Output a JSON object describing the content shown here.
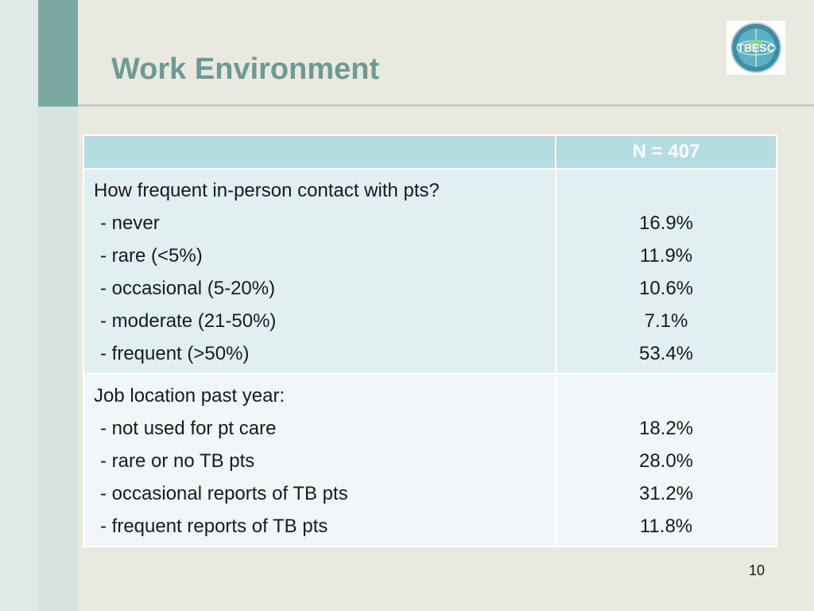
{
  "slide": {
    "title": "Work Environment",
    "page_number": "10",
    "logo_text": "TBESC"
  },
  "table": {
    "header": {
      "label": "",
      "value": "N = 407"
    },
    "groups": [
      {
        "question": "How frequent in-person contact with pts?",
        "items": [
          {
            "label": "- never",
            "value": "16.9%"
          },
          {
            "label": "- rare (<5%)",
            "value": "11.9%"
          },
          {
            "label": "- occasional (5-20%)",
            "value": "10.6%"
          },
          {
            "label": "- moderate (21-50%)",
            "value": "7.1%"
          },
          {
            "label": "- frequent (>50%)",
            "value": "53.4%"
          }
        ]
      },
      {
        "question": "Job location past year:",
        "items": [
          {
            "label": "- not used for pt care",
            "value": "18.2%"
          },
          {
            "label": "- rare or no TB pts",
            "value": "28.0%"
          },
          {
            "label": "- occasional reports of TB pts",
            "value": "31.2%"
          },
          {
            "label": "- frequent reports of TB pts",
            "value": "11.8%"
          }
        ]
      }
    ]
  },
  "colors": {
    "title": "#6d9a94",
    "header_fill": "#b4dde1",
    "row_fill_1": "#e1eff0",
    "row_fill_2": "#f1f7f8",
    "accent_bar": "#7aa8a2"
  },
  "icons": {
    "logo": "tbesc-globe-logo"
  }
}
